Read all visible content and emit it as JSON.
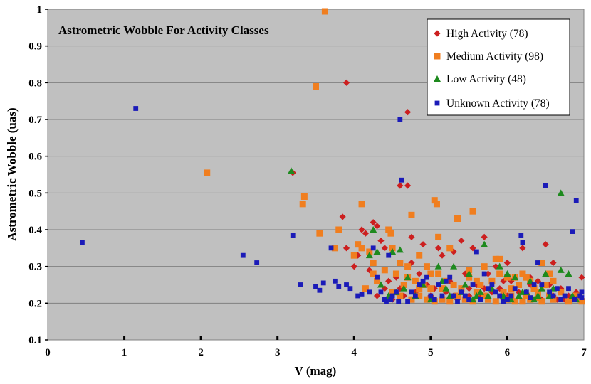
{
  "chart_data": {
    "type": "scatter",
    "title": "Astrometric Wobble For Activity Classes",
    "xlabel": "V (mag)",
    "ylabel": "Astrometric Wobble (uas)",
    "xlim": [
      0,
      7
    ],
    "ylim": [
      0.1,
      1.0
    ],
    "xticks": [
      "0",
      "1",
      "2",
      "3",
      "4",
      "5",
      "6",
      "7"
    ],
    "yticks": [
      "0.1",
      "0.2",
      "0.3",
      "0.4",
      "0.5",
      "0.6",
      "0.7",
      "0.8",
      "0.9",
      "1"
    ],
    "grid": "horizontal",
    "legend_position": "top-right",
    "series": [
      {
        "name": "High Activity (78)",
        "marker": "diamond",
        "color": "#cc1f1f",
        "points": [
          [
            3.2,
            0.555
          ],
          [
            3.9,
            0.8
          ],
          [
            4.7,
            0.72
          ],
          [
            4.6,
            0.52
          ],
          [
            4.7,
            0.52
          ],
          [
            3.85,
            0.435
          ],
          [
            3.9,
            0.35
          ],
          [
            4.1,
            0.4
          ],
          [
            4.15,
            0.39
          ],
          [
            4.0,
            0.3
          ],
          [
            4.25,
            0.42
          ],
          [
            4.3,
            0.41
          ],
          [
            4.35,
            0.37
          ],
          [
            4.4,
            0.35
          ],
          [
            4.45,
            0.26
          ],
          [
            4.55,
            0.27
          ],
          [
            4.6,
            0.24
          ],
          [
            4.75,
            0.38
          ],
          [
            4.9,
            0.36
          ],
          [
            5.1,
            0.35
          ],
          [
            5.15,
            0.33
          ],
          [
            5.3,
            0.34
          ],
          [
            5.4,
            0.37
          ],
          [
            5.55,
            0.35
          ],
          [
            5.7,
            0.38
          ],
          [
            5.85,
            0.3
          ],
          [
            6.0,
            0.31
          ],
          [
            6.2,
            0.35
          ],
          [
            6.3,
            0.27
          ],
          [
            6.5,
            0.36
          ],
          [
            6.6,
            0.31
          ],
          [
            6.7,
            0.24
          ],
          [
            6.85,
            0.21
          ],
          [
            7.0,
            0.27
          ],
          [
            4.3,
            0.22
          ],
          [
            4.5,
            0.21
          ],
          [
            4.65,
            0.22
          ],
          [
            4.8,
            0.23
          ],
          [
            5.0,
            0.22
          ],
          [
            5.2,
            0.23
          ],
          [
            5.35,
            0.21
          ],
          [
            5.5,
            0.22
          ],
          [
            5.65,
            0.22
          ],
          [
            5.8,
            0.23
          ],
          [
            5.95,
            0.21
          ],
          [
            6.05,
            0.26
          ],
          [
            6.15,
            0.23
          ],
          [
            6.35,
            0.24
          ],
          [
            6.45,
            0.21
          ],
          [
            6.55,
            0.25
          ],
          [
            6.75,
            0.21
          ],
          [
            6.95,
            0.21
          ],
          [
            4.2,
            0.29
          ],
          [
            4.85,
            0.28
          ],
          [
            5.25,
            0.26
          ],
          [
            5.45,
            0.28
          ],
          [
            5.6,
            0.25
          ],
          [
            5.75,
            0.28
          ],
          [
            6.1,
            0.27
          ],
          [
            6.25,
            0.22
          ],
          [
            6.4,
            0.26
          ],
          [
            6.6,
            0.22
          ],
          [
            6.9,
            0.23
          ],
          [
            4.4,
            0.24
          ],
          [
            4.95,
            0.25
          ],
          [
            5.05,
            0.24
          ],
          [
            5.5,
            0.24
          ],
          [
            5.9,
            0.24
          ],
          [
            6.65,
            0.21
          ],
          [
            6.8,
            0.22
          ],
          [
            4.55,
            0.23
          ],
          [
            5.3,
            0.22
          ],
          [
            5.7,
            0.24
          ],
          [
            6.0,
            0.22
          ],
          [
            6.3,
            0.25
          ],
          [
            4.05,
            0.33
          ],
          [
            4.75,
            0.31
          ],
          [
            5.95,
            0.26
          ]
        ]
      },
      {
        "name": "Medium Activity (98)",
        "marker": "square",
        "color": "#f07e1f",
        "points": [
          [
            3.62,
            0.995
          ],
          [
            3.5,
            0.79
          ],
          [
            2.08,
            0.555
          ],
          [
            3.35,
            0.49
          ],
          [
            3.33,
            0.47
          ],
          [
            3.55,
            0.39
          ],
          [
            4.1,
            0.47
          ],
          [
            3.8,
            0.4
          ],
          [
            3.75,
            0.35
          ],
          [
            4.05,
            0.36
          ],
          [
            4.1,
            0.35
          ],
          [
            4.0,
            0.33
          ],
          [
            4.2,
            0.34
          ],
          [
            4.25,
            0.31
          ],
          [
            4.45,
            0.4
          ],
          [
            4.48,
            0.39
          ],
          [
            4.5,
            0.35
          ],
          [
            4.6,
            0.31
          ],
          [
            4.75,
            0.44
          ],
          [
            4.85,
            0.33
          ],
          [
            4.95,
            0.3
          ],
          [
            5.05,
            0.48
          ],
          [
            5.08,
            0.47
          ],
          [
            5.1,
            0.38
          ],
          [
            5.25,
            0.35
          ],
          [
            5.35,
            0.43
          ],
          [
            5.55,
            0.45
          ],
          [
            5.7,
            0.3
          ],
          [
            5.85,
            0.32
          ],
          [
            5.9,
            0.32
          ],
          [
            6.0,
            0.27
          ],
          [
            6.1,
            0.27
          ],
          [
            6.2,
            0.28
          ],
          [
            6.3,
            0.26
          ],
          [
            6.45,
            0.31
          ],
          [
            6.55,
            0.28
          ],
          [
            6.6,
            0.26
          ],
          [
            4.15,
            0.24
          ],
          [
            4.3,
            0.26
          ],
          [
            4.4,
            0.29
          ],
          [
            4.55,
            0.28
          ],
          [
            4.65,
            0.25
          ],
          [
            4.7,
            0.27
          ],
          [
            4.8,
            0.26
          ],
          [
            4.9,
            0.25
          ],
          [
            5.0,
            0.24
          ],
          [
            5.1,
            0.28
          ],
          [
            5.2,
            0.26
          ],
          [
            5.3,
            0.25
          ],
          [
            5.4,
            0.24
          ],
          [
            5.5,
            0.27
          ],
          [
            5.6,
            0.23
          ],
          [
            5.65,
            0.25
          ],
          [
            5.8,
            0.26
          ],
          [
            5.95,
            0.23
          ],
          [
            6.05,
            0.24
          ],
          [
            6.15,
            0.25
          ],
          [
            6.25,
            0.22
          ],
          [
            6.35,
            0.24
          ],
          [
            6.4,
            0.23
          ],
          [
            6.5,
            0.25
          ],
          [
            6.7,
            0.23
          ],
          [
            6.9,
            0.22
          ],
          [
            7.0,
            0.205
          ],
          [
            4.6,
            0.22
          ],
          [
            4.75,
            0.21
          ],
          [
            4.95,
            0.21
          ],
          [
            5.05,
            0.205
          ],
          [
            5.15,
            0.21
          ],
          [
            5.25,
            0.205
          ],
          [
            5.45,
            0.21
          ],
          [
            5.55,
            0.205
          ],
          [
            5.75,
            0.21
          ],
          [
            5.85,
            0.205
          ],
          [
            6.0,
            0.21
          ],
          [
            6.1,
            0.205
          ],
          [
            6.2,
            0.205
          ],
          [
            6.3,
            0.21
          ],
          [
            6.45,
            0.205
          ],
          [
            6.6,
            0.21
          ],
          [
            6.8,
            0.205
          ],
          [
            4.5,
            0.23
          ],
          [
            4.85,
            0.22
          ],
          [
            5.35,
            0.22
          ],
          [
            5.7,
            0.22
          ],
          [
            6.05,
            0.22
          ],
          [
            6.4,
            0.215
          ],
          [
            4.7,
            0.3
          ],
          [
            5.0,
            0.28
          ],
          [
            5.5,
            0.29
          ],
          [
            5.9,
            0.28
          ],
          [
            6.25,
            0.27
          ],
          [
            4.25,
            0.28
          ],
          [
            4.85,
            0.24
          ],
          [
            5.15,
            0.24
          ],
          [
            5.6,
            0.26
          ],
          [
            6.55,
            0.22
          ],
          [
            6.95,
            0.21
          ]
        ]
      },
      {
        "name": "Low Activity (48)",
        "marker": "triangle",
        "color": "#1e8a1e",
        "points": [
          [
            3.18,
            0.56
          ],
          [
            4.25,
            0.4
          ],
          [
            4.5,
            0.34
          ],
          [
            4.6,
            0.345
          ],
          [
            4.3,
            0.34
          ],
          [
            4.2,
            0.33
          ],
          [
            6.7,
            0.5
          ],
          [
            5.1,
            0.3
          ],
          [
            5.3,
            0.3
          ],
          [
            5.5,
            0.28
          ],
          [
            5.7,
            0.36
          ],
          [
            5.9,
            0.3
          ],
          [
            6.0,
            0.28
          ],
          [
            6.1,
            0.27
          ],
          [
            6.3,
            0.26
          ],
          [
            6.5,
            0.28
          ],
          [
            6.7,
            0.29
          ],
          [
            6.8,
            0.28
          ],
          [
            4.7,
            0.27
          ],
          [
            4.9,
            0.25
          ],
          [
            5.2,
            0.24
          ],
          [
            5.4,
            0.23
          ],
          [
            5.6,
            0.22
          ],
          [
            5.8,
            0.24
          ],
          [
            6.05,
            0.21
          ],
          [
            6.2,
            0.23
          ],
          [
            6.4,
            0.22
          ],
          [
            6.6,
            0.24
          ],
          [
            4.35,
            0.25
          ],
          [
            4.55,
            0.23
          ],
          [
            4.8,
            0.22
          ],
          [
            5.0,
            0.21
          ],
          [
            5.25,
            0.22
          ],
          [
            5.45,
            0.25
          ],
          [
            5.65,
            0.23
          ],
          [
            5.95,
            0.22
          ],
          [
            6.15,
            0.22
          ],
          [
            6.35,
            0.21
          ],
          [
            6.55,
            0.22
          ],
          [
            6.85,
            0.22
          ],
          [
            4.45,
            0.22
          ],
          [
            4.65,
            0.24
          ],
          [
            5.15,
            0.26
          ],
          [
            5.55,
            0.21
          ],
          [
            5.75,
            0.22
          ],
          [
            6.25,
            0.23
          ],
          [
            6.45,
            0.24
          ],
          [
            6.9,
            0.21
          ]
        ]
      },
      {
        "name": "Unknown Activity (78)",
        "marker": "square-small",
        "color": "#1b1bb8",
        "points": [
          [
            1.15,
            0.73
          ],
          [
            0.45,
            0.365
          ],
          [
            2.55,
            0.33
          ],
          [
            2.73,
            0.31
          ],
          [
            3.2,
            0.385
          ],
          [
            3.3,
            0.25
          ],
          [
            3.5,
            0.245
          ],
          [
            3.55,
            0.235
          ],
          [
            3.6,
            0.255
          ],
          [
            3.7,
            0.35
          ],
          [
            3.75,
            0.26
          ],
          [
            3.8,
            0.245
          ],
          [
            3.9,
            0.25
          ],
          [
            3.95,
            0.24
          ],
          [
            4.05,
            0.22
          ],
          [
            4.1,
            0.225
          ],
          [
            4.2,
            0.23
          ],
          [
            4.25,
            0.35
          ],
          [
            4.35,
            0.23
          ],
          [
            4.4,
            0.21
          ],
          [
            4.45,
            0.33
          ],
          [
            4.5,
            0.22
          ],
          [
            4.55,
            0.23
          ],
          [
            4.6,
            0.7
          ],
          [
            4.62,
            0.535
          ],
          [
            4.7,
            0.205
          ],
          [
            4.8,
            0.22
          ],
          [
            4.9,
            0.26
          ],
          [
            4.95,
            0.27
          ],
          [
            5.0,
            0.22
          ],
          [
            5.1,
            0.25
          ],
          [
            5.2,
            0.26
          ],
          [
            5.3,
            0.22
          ],
          [
            5.4,
            0.23
          ],
          [
            5.5,
            0.21
          ],
          [
            5.6,
            0.34
          ],
          [
            5.7,
            0.28
          ],
          [
            5.8,
            0.25
          ],
          [
            5.9,
            0.22
          ],
          [
            6.0,
            0.21
          ],
          [
            6.1,
            0.24
          ],
          [
            6.18,
            0.385
          ],
          [
            6.2,
            0.365
          ],
          [
            6.3,
            0.215
          ],
          [
            6.4,
            0.31
          ],
          [
            6.45,
            0.25
          ],
          [
            6.5,
            0.52
          ],
          [
            6.6,
            0.22
          ],
          [
            6.7,
            0.21
          ],
          [
            6.8,
            0.24
          ],
          [
            6.85,
            0.395
          ],
          [
            6.9,
            0.48
          ],
          [
            6.95,
            0.22
          ],
          [
            7.0,
            0.23
          ],
          [
            4.3,
            0.27
          ],
          [
            4.42,
            0.205
          ],
          [
            4.48,
            0.21
          ],
          [
            4.58,
            0.205
          ],
          [
            4.75,
            0.23
          ],
          [
            4.85,
            0.25
          ],
          [
            5.05,
            0.21
          ],
          [
            5.15,
            0.22
          ],
          [
            5.25,
            0.27
          ],
          [
            5.35,
            0.205
          ],
          [
            5.45,
            0.22
          ],
          [
            5.55,
            0.25
          ],
          [
            5.65,
            0.21
          ],
          [
            5.75,
            0.24
          ],
          [
            5.85,
            0.23
          ],
          [
            5.95,
            0.205
          ],
          [
            6.05,
            0.22
          ],
          [
            6.25,
            0.23
          ],
          [
            6.35,
            0.25
          ],
          [
            6.55,
            0.23
          ],
          [
            6.65,
            0.24
          ],
          [
            6.75,
            0.22
          ],
          [
            6.88,
            0.21
          ],
          [
            6.98,
            0.215
          ]
        ]
      }
    ]
  }
}
